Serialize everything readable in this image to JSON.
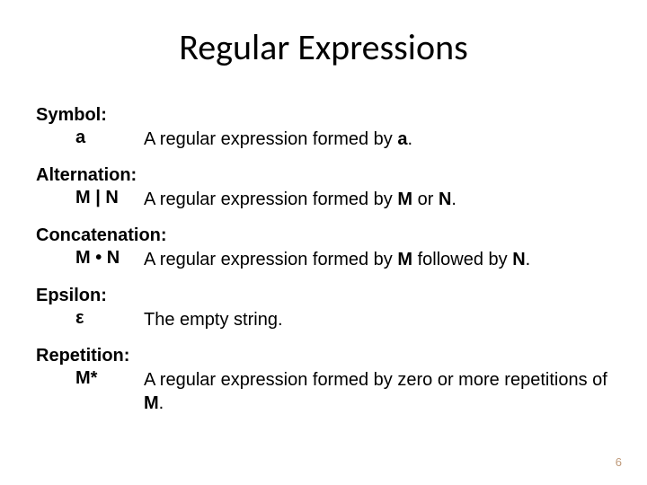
{
  "slide": {
    "title": "Regular Expressions",
    "title_fontsize": 40,
    "title_color": "#000000",
    "body_fontsize": 20,
    "body_color": "#000000",
    "background_color": "#ffffff",
    "page_number": "6",
    "page_number_color": "#bf9a7a",
    "entries": [
      {
        "label": "Symbol:",
        "symbol": "a",
        "desc_pre": "A regular expression formed by ",
        "desc_bold": "a",
        "desc_post": "."
      },
      {
        "label": "Alternation:",
        "symbol": "M | N",
        "desc_pre": "A regular expression formed by ",
        "desc_bold": "M",
        "desc_mid": " or ",
        "desc_bold2": "N",
        "desc_post": "."
      },
      {
        "label": "Concatenation:",
        "symbol": "M • N",
        "desc_pre": "A regular expression formed by ",
        "desc_bold": "M",
        "desc_mid": " followed by ",
        "desc_bold2": "N",
        "desc_post": "."
      },
      {
        "label": "Epsilon:",
        "symbol": "ε",
        "desc_plain": "The empty string."
      },
      {
        "label": "Repetition:",
        "symbol": "M*",
        "desc_pre": " A regular expression formed by zero or more repetitions of ",
        "desc_bold": "M",
        "desc_post": "."
      }
    ]
  }
}
